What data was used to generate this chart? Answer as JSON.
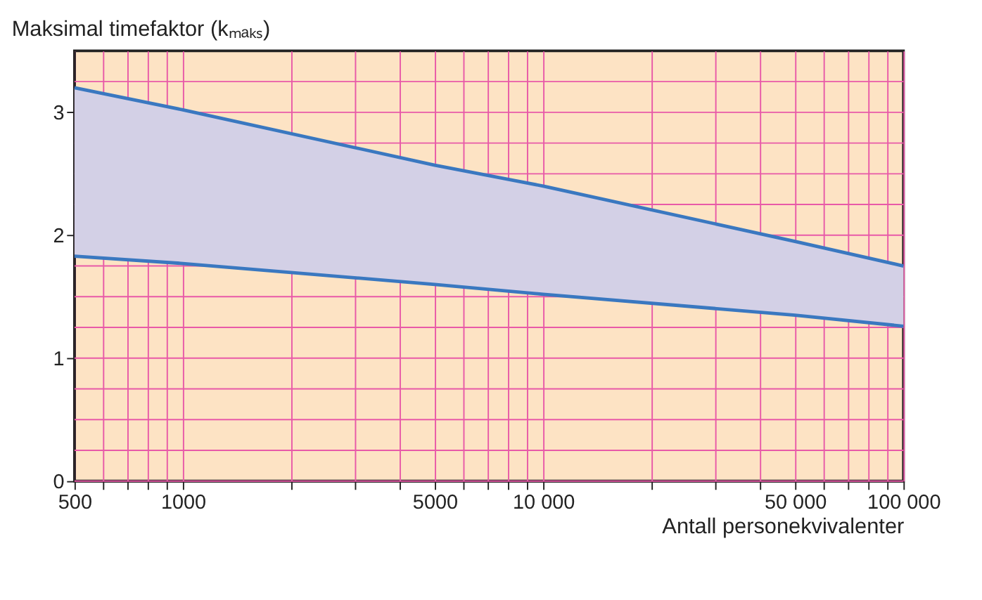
{
  "chart_data": {
    "type": "line",
    "title": "Maksimal timefaktor (kₘₐₖₛ)",
    "xlabel": "Antall personekvivalenter",
    "log": "x",
    "grid": true,
    "line_style": "solid",
    "marker": "none",
    "xlim": [
      500,
      100000
    ],
    "ylim": [
      0,
      3.5
    ],
    "xticks": [
      500,
      {
        "value": 600,
        "label": null
      },
      {
        "value": 700,
        "label": null
      },
      {
        "value": 800,
        "label": null
      },
      {
        "value": 900,
        "label": null
      },
      1000,
      {
        "value": 2000,
        "label": null
      },
      {
        "value": 3000,
        "label": null
      },
      {
        "value": 4000,
        "label": null
      },
      5000,
      {
        "value": 6000,
        "label": null
      },
      {
        "value": 7000,
        "label": null
      },
      {
        "value": 8000,
        "label": null
      },
      {
        "value": 9000,
        "label": null
      },
      {
        "value": 10000,
        "label": "10 000"
      },
      {
        "value": 20000,
        "label": null
      },
      {
        "value": 30000,
        "label": null
      },
      {
        "value": 40000,
        "label": null
      },
      {
        "value": 50000,
        "label": "50 000"
      },
      {
        "value": 60000,
        "label": null
      },
      {
        "value": 70000,
        "label": null
      },
      {
        "value": 80000,
        "label": null
      },
      {
        "value": 90000,
        "label": null
      },
      {
        "value": 100000,
        "label": "100 000"
      }
    ],
    "yticks": [
      0,
      {
        "value": 0.25,
        "label": null
      },
      {
        "value": 0.5,
        "label": null
      },
      {
        "value": 0.75,
        "label": null
      },
      1,
      {
        "value": 1.25,
        "label": null
      },
      {
        "value": 1.5,
        "label": null
      },
      {
        "value": 1.75,
        "label": null
      },
      2,
      {
        "value": 2.25,
        "label": null
      },
      {
        "value": 2.5,
        "label": null
      },
      {
        "value": 2.75,
        "label": null
      },
      3,
      {
        "value": 3.25,
        "label": null
      }
    ],
    "x": [
      500,
      1000,
      5000,
      10000,
      50000,
      100000
    ],
    "series": [
      {
        "color": "#3a78c0",
        "values": [
          3.2,
          3.02,
          2.57,
          2.4,
          1.95,
          1.75
        ],
        "lower": [
          1.83,
          1.77,
          1.6,
          1.52,
          1.35,
          1.26
        ],
        "upper": [
          3.2,
          3.02,
          2.57,
          2.4,
          1.95,
          1.75
        ]
      },
      {
        "color": "#3a78c0",
        "values": [
          1.83,
          1.77,
          1.6,
          1.52,
          1.35,
          1.26
        ]
      }
    ]
  }
}
